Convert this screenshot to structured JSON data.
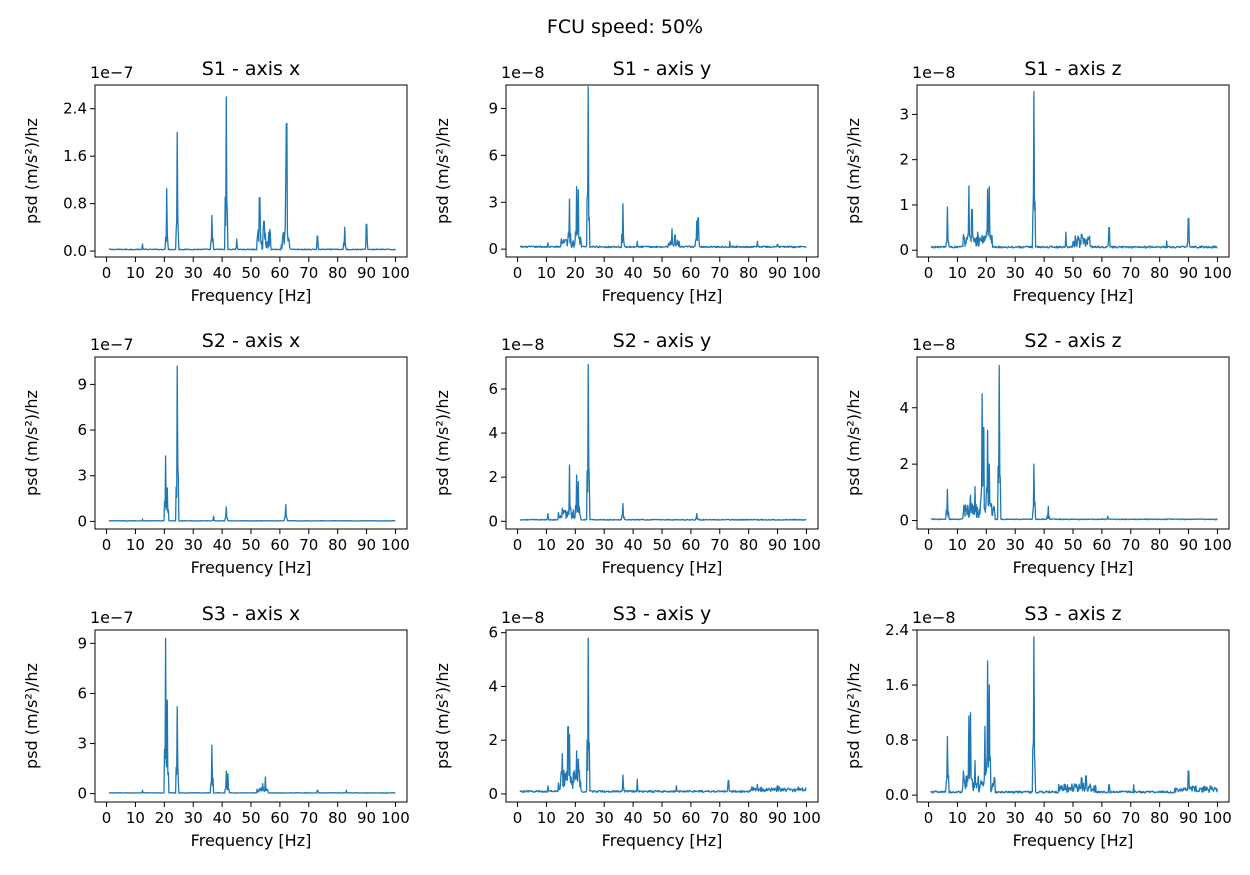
{
  "figure": {
    "title": "FCU speed: 50%"
  },
  "chart_data": [
    {
      "type": "line",
      "title": "S1 - axis x",
      "xlabel": "Frequency [Hz]",
      "ylabel": "psd (m/s²)/hz",
      "offset_text": "1e−7",
      "xlim": [
        0,
        100
      ],
      "ylim": [
        -0.1,
        2.8
      ],
      "xticks": [
        0,
        10,
        20,
        30,
        40,
        50,
        60,
        70,
        80,
        90,
        100
      ],
      "yticks": [
        0.0,
        0.8,
        1.6,
        2.4
      ],
      "ytick_labels": [
        "0.0",
        "0.8",
        "1.6",
        "2.4"
      ],
      "baseline": 0.02,
      "noise": 0.015,
      "peaks": [
        [
          12.5,
          0.12
        ],
        [
          20.8,
          1.05
        ],
        [
          24.5,
          2.0
        ],
        [
          36.5,
          0.6
        ],
        [
          41.5,
          2.6
        ],
        [
          45,
          0.2
        ],
        [
          53,
          0.9
        ],
        [
          54.5,
          0.5
        ],
        [
          62.3,
          2.15
        ],
        [
          62,
          1.25
        ],
        [
          73,
          0.25
        ],
        [
          82.5,
          0.4
        ],
        [
          90,
          0.45
        ]
      ],
      "bands": [
        [
          52,
          57,
          0.35
        ],
        [
          60.5,
          63.5,
          0.4
        ]
      ]
    },
    {
      "type": "line",
      "title": "S1 - axis y",
      "xlabel": "Frequency [Hz]",
      "ylabel": "psd (m/s²)/hz",
      "offset_text": "1e−8",
      "xlim": [
        0,
        100
      ],
      "ylim": [
        -0.5,
        10.5
      ],
      "xticks": [
        0,
        10,
        20,
        30,
        40,
        50,
        60,
        70,
        80,
        90,
        100
      ],
      "yticks": [
        0,
        3,
        6,
        9
      ],
      "ytick_labels": [
        "0",
        "3",
        "6",
        "9"
      ],
      "baseline": 0.1,
      "noise": 0.1,
      "peaks": [
        [
          10.5,
          0.4
        ],
        [
          18,
          3.2
        ],
        [
          20.5,
          4.0
        ],
        [
          21,
          3.8
        ],
        [
          24.5,
          10.4
        ],
        [
          36.5,
          2.9
        ],
        [
          41.5,
          0.5
        ],
        [
          53.5,
          1.3
        ],
        [
          54.5,
          0.9
        ],
        [
          62,
          1.8
        ],
        [
          62.5,
          2.0
        ],
        [
          73.5,
          0.5
        ],
        [
          83,
          0.5
        ],
        [
          90,
          0.3
        ]
      ],
      "bands": [
        [
          15,
          22,
          0.6
        ],
        [
          52,
          56,
          0.4
        ]
      ]
    },
    {
      "type": "line",
      "title": "S1 - axis z",
      "xlabel": "Frequency [Hz]",
      "ylabel": "psd (m/s²)/hz",
      "offset_text": "1e−8",
      "xlim": [
        0,
        100
      ],
      "ylim": [
        -0.15,
        3.65
      ],
      "xticks": [
        0,
        10,
        20,
        30,
        40,
        50,
        60,
        70,
        80,
        90,
        100
      ],
      "yticks": [
        0,
        1,
        2,
        3
      ],
      "ytick_labels": [
        "0",
        "1",
        "2",
        "3"
      ],
      "baseline": 0.05,
      "noise": 0.04,
      "peaks": [
        [
          6.5,
          0.95
        ],
        [
          12,
          0.35
        ],
        [
          14,
          1.42
        ],
        [
          15,
          0.9
        ],
        [
          17,
          0.4
        ],
        [
          20.5,
          1.35
        ],
        [
          21,
          1.4
        ],
        [
          36.5,
          3.5
        ],
        [
          47.5,
          0.4
        ],
        [
          53,
          0.35
        ],
        [
          62.5,
          0.5
        ],
        [
          82.5,
          0.2
        ],
        [
          90,
          0.7
        ]
      ],
      "bands": [
        [
          12,
          22,
          0.25
        ],
        [
          50,
          56,
          0.25
        ]
      ]
    },
    {
      "type": "line",
      "title": "S2 - axis x",
      "xlabel": "Frequency [Hz]",
      "ylabel": "psd (m/s²)/hz",
      "offset_text": "1e−7",
      "xlim": [
        0,
        100
      ],
      "ylim": [
        -0.5,
        10.8
      ],
      "xticks": [
        0,
        10,
        20,
        30,
        40,
        50,
        60,
        70,
        80,
        90,
        100
      ],
      "yticks": [
        0,
        3,
        6,
        9
      ],
      "ytick_labels": [
        "0",
        "3",
        "6",
        "9"
      ],
      "baseline": 0.02,
      "noise": 0.03,
      "peaks": [
        [
          12.5,
          0.15
        ],
        [
          20.5,
          4.3
        ],
        [
          21,
          2.2
        ],
        [
          24.5,
          10.2
        ],
        [
          37,
          0.35
        ],
        [
          41.5,
          0.95
        ],
        [
          62,
          1.1
        ]
      ],
      "bands": []
    },
    {
      "type": "line",
      "title": "S2 - axis y",
      "xlabel": "Frequency [Hz]",
      "ylabel": "psd (m/s²)/hz",
      "offset_text": "1e−8",
      "xlim": [
        0,
        100
      ],
      "ylim": [
        -0.35,
        7.45
      ],
      "xticks": [
        0,
        10,
        20,
        30,
        40,
        50,
        60,
        70,
        80,
        90,
        100
      ],
      "yticks": [
        0,
        2,
        4,
        6
      ],
      "ytick_labels": [
        "0",
        "2",
        "4",
        "6"
      ],
      "baseline": 0.05,
      "noise": 0.04,
      "peaks": [
        [
          10.5,
          0.35
        ],
        [
          15.5,
          0.6
        ],
        [
          18,
          2.55
        ],
        [
          20.5,
          2.1
        ],
        [
          21,
          1.8
        ],
        [
          24.5,
          7.1
        ],
        [
          36.5,
          0.8
        ],
        [
          62,
          0.35
        ]
      ],
      "bands": [
        [
          14,
          22,
          0.5
        ]
      ]
    },
    {
      "type": "line",
      "title": "S2 - axis z",
      "xlabel": "Frequency [Hz]",
      "ylabel": "psd (m/s²)/hz",
      "offset_text": "1e−8",
      "xlim": [
        0,
        100
      ],
      "ylim": [
        -0.3,
        5.8
      ],
      "xticks": [
        0,
        10,
        20,
        30,
        40,
        50,
        60,
        70,
        80,
        90,
        100
      ],
      "yticks": [
        0,
        2,
        4
      ],
      "ytick_labels": [
        "0",
        "2",
        "4"
      ],
      "baseline": 0.03,
      "noise": 0.03,
      "peaks": [
        [
          6.5,
          1.1
        ],
        [
          12,
          0.3
        ],
        [
          14.5,
          0.9
        ],
        [
          16,
          1.2
        ],
        [
          18.5,
          4.5
        ],
        [
          19,
          3.3
        ],
        [
          20.5,
          3.2
        ],
        [
          21,
          2.0
        ],
        [
          24.5,
          5.5
        ],
        [
          36.5,
          2.0
        ],
        [
          41.5,
          0.5
        ],
        [
          62,
          0.15
        ]
      ],
      "bands": [
        [
          12,
          23,
          0.6
        ]
      ]
    },
    {
      "type": "line",
      "title": "S3 - axis x",
      "xlabel": "Frequency [Hz]",
      "ylabel": "psd (m/s²)/hz",
      "offset_text": "1e−7",
      "xlim": [
        0,
        100
      ],
      "ylim": [
        -0.5,
        9.8
      ],
      "xticks": [
        0,
        10,
        20,
        30,
        40,
        50,
        60,
        70,
        80,
        90,
        100
      ],
      "yticks": [
        0,
        3,
        6,
        9
      ],
      "ytick_labels": [
        "0",
        "3",
        "6",
        "9"
      ],
      "baseline": 0.03,
      "noise": 0.03,
      "peaks": [
        [
          12.5,
          0.2
        ],
        [
          20.5,
          9.3
        ],
        [
          21,
          5.6
        ],
        [
          24.5,
          5.2
        ],
        [
          36.5,
          2.9
        ],
        [
          41.5,
          1.35
        ],
        [
          42,
          1.2
        ],
        [
          55,
          1.0
        ],
        [
          54,
          0.6
        ],
        [
          73,
          0.2
        ],
        [
          83,
          0.2
        ]
      ],
      "bands": [
        [
          52,
          56,
          0.3
        ]
      ]
    },
    {
      "type": "line",
      "title": "S3 - axis y",
      "xlabel": "Frequency [Hz]",
      "ylabel": "psd (m/s²)/hz",
      "offset_text": "1e−8",
      "xlim": [
        0,
        100
      ],
      "ylim": [
        -0.3,
        6.1
      ],
      "xticks": [
        0,
        10,
        20,
        30,
        40,
        50,
        60,
        70,
        80,
        90,
        100
      ],
      "yticks": [
        0,
        2,
        4,
        6
      ],
      "ytick_labels": [
        "0",
        "2",
        "4",
        "6"
      ],
      "baseline": 0.06,
      "noise": 0.07,
      "peaks": [
        [
          10.5,
          0.3
        ],
        [
          15.5,
          1.5
        ],
        [
          17.5,
          2.5
        ],
        [
          18,
          2.2
        ],
        [
          20.5,
          1.6
        ],
        [
          21,
          1.3
        ],
        [
          24.5,
          5.8
        ],
        [
          36.5,
          0.7
        ],
        [
          41.5,
          0.55
        ],
        [
          55,
          0.3
        ],
        [
          73,
          0.5
        ],
        [
          83,
          0.35
        ],
        [
          90,
          0.3
        ]
      ],
      "bands": [
        [
          14,
          22,
          0.8
        ],
        [
          80,
          100,
          0.15
        ]
      ]
    },
    {
      "type": "line",
      "title": "S3 - axis z",
      "xlabel": "Frequency [Hz]",
      "ylabel": "psd (m/s²)/hz",
      "offset_text": "1e−8",
      "xlim": [
        0,
        100
      ],
      "ylim": [
        -0.1,
        2.4
      ],
      "xticks": [
        0,
        10,
        20,
        30,
        40,
        50,
        60,
        70,
        80,
        90,
        100
      ],
      "yticks": [
        0.0,
        0.8,
        1.6,
        2.4
      ],
      "ytick_labels": [
        "0.0",
        "0.8",
        "1.6",
        "2.4"
      ],
      "baseline": 0.03,
      "noise": 0.03,
      "peaks": [
        [
          6.5,
          0.85
        ],
        [
          12,
          0.35
        ],
        [
          14,
          1.15
        ],
        [
          14.5,
          1.2
        ],
        [
          16,
          0.5
        ],
        [
          19.5,
          1.0
        ],
        [
          20.5,
          1.95
        ],
        [
          21,
          1.6
        ],
        [
          36.5,
          2.3
        ],
        [
          53,
          0.25
        ],
        [
          54.5,
          0.28
        ],
        [
          62.5,
          0.15
        ],
        [
          71,
          0.15
        ],
        [
          90,
          0.35
        ]
      ],
      "bands": [
        [
          12,
          23,
          0.25
        ],
        [
          45,
          58,
          0.12
        ],
        [
          85,
          100,
          0.08
        ]
      ]
    }
  ]
}
